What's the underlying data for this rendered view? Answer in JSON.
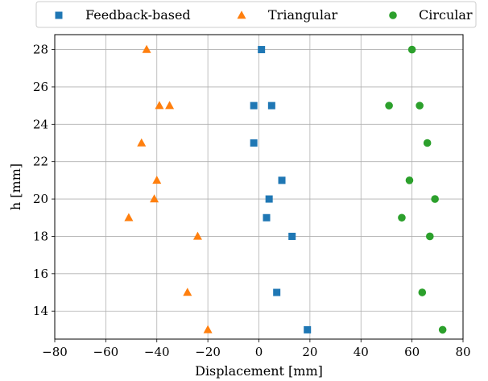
{
  "chart_data": {
    "type": "scatter",
    "xlabel": "Displacement [mm]",
    "ylabel": "h [mm]",
    "xlim": [
      -80,
      80
    ],
    "ylim": [
      12.5,
      28.8
    ],
    "xticks": [
      -80,
      -60,
      -40,
      -20,
      0,
      20,
      40,
      60,
      80
    ],
    "xtick_labels": [
      "−80",
      "−60",
      "−40",
      "−20",
      "0",
      "20",
      "40",
      "60",
      "80"
    ],
    "yticks": [
      14,
      16,
      18,
      20,
      22,
      24,
      26,
      28
    ],
    "ytick_labels": [
      "14",
      "16",
      "18",
      "20",
      "22",
      "24",
      "26",
      "28"
    ],
    "grid": true,
    "legend_position": "top-outside",
    "series": [
      {
        "name": "Feedback-based",
        "marker": "square",
        "color": "#1f77b4",
        "points": [
          [
            1,
            28
          ],
          [
            -2,
            25
          ],
          [
            5,
            25
          ],
          [
            -2,
            23
          ],
          [
            9,
            21
          ],
          [
            4,
            20
          ],
          [
            3,
            19
          ],
          [
            13,
            18
          ],
          [
            7,
            15
          ],
          [
            19,
            13
          ]
        ]
      },
      {
        "name": "Triangular",
        "marker": "triangle",
        "color": "#ff7f0e",
        "points": [
          [
            -44,
            28
          ],
          [
            -39,
            25
          ],
          [
            -35,
            25
          ],
          [
            -46,
            23
          ],
          [
            -40,
            21
          ],
          [
            -41,
            20
          ],
          [
            -51,
            19
          ],
          [
            -24,
            18
          ],
          [
            -28,
            15
          ],
          [
            -20,
            13
          ]
        ]
      },
      {
        "name": "Circular",
        "marker": "circle",
        "color": "#2ca02c",
        "points": [
          [
            60,
            28
          ],
          [
            51,
            25
          ],
          [
            63,
            25
          ],
          [
            66,
            23
          ],
          [
            59,
            21
          ],
          [
            69,
            20
          ],
          [
            56,
            19
          ],
          [
            67,
            18
          ],
          [
            64,
            15
          ],
          [
            72,
            13
          ]
        ]
      }
    ]
  }
}
